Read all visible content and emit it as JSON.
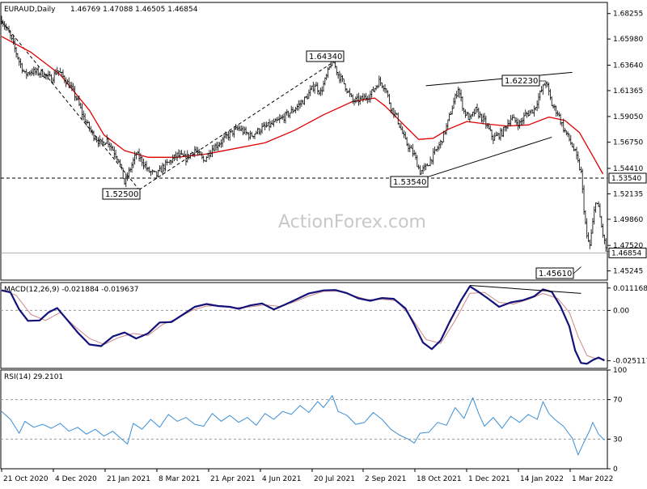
{
  "chart_data": [
    {
      "type": "candlestick",
      "title": "EURAUD,Daily",
      "ohlc": "1.46769 1.47088 1.46505 1.46854",
      "ylim": [
        1.4442,
        1.6925
      ],
      "y_ticks": [
        "1.68255",
        "1.65980",
        "1.63640",
        "1.61365",
        "1.59050",
        "1.56750",
        "1.54410",
        "1.52135",
        "1.49860",
        "1.47520",
        "1.45245"
      ],
      "x_ticks": [
        "21 Oct 2020",
        "4 Dec 2020",
        "21 Jan 2021",
        "8 Mar 2021",
        "21 Apr 2021",
        "4 Jun 2021",
        "20 Jul 2021",
        "2 Sep 2021",
        "18 Oct 2021",
        "1 Dec 2021",
        "14 Jan 2022",
        "1 Mar 2022"
      ],
      "price_tags": {
        "support": "1.53540",
        "current": "1.46854"
      },
      "annotations": [
        "1.52500",
        "1.64340",
        "1.53540",
        "1.62230",
        "1.45610"
      ],
      "close_path": [
        [
          0,
          1.677
        ],
        [
          6,
          1.662
        ],
        [
          12,
          1.64
        ],
        [
          16,
          1.628
        ],
        [
          20,
          1.631
        ],
        [
          28,
          1.629
        ],
        [
          34,
          1.624
        ],
        [
          38,
          1.632
        ],
        [
          42,
          1.626
        ],
        [
          48,
          1.615
        ],
        [
          52,
          1.604
        ],
        [
          56,
          1.59
        ],
        [
          62,
          1.575
        ],
        [
          68,
          1.566
        ],
        [
          72,
          1.57
        ],
        [
          80,
          1.552
        ],
        [
          84,
          1.531
        ],
        [
          88,
          1.544
        ],
        [
          92,
          1.557
        ],
        [
          96,
          1.551
        ],
        [
          100,
          1.542
        ],
        [
          106,
          1.538
        ],
        [
          110,
          1.545
        ],
        [
          114,
          1.549
        ],
        [
          120,
          1.556
        ],
        [
          126,
          1.553
        ],
        [
          132,
          1.561
        ],
        [
          138,
          1.551
        ],
        [
          144,
          1.562
        ],
        [
          150,
          1.568
        ],
        [
          156,
          1.575
        ],
        [
          162,
          1.58
        ],
        [
          170,
          1.573
        ],
        [
          178,
          1.58
        ],
        [
          186,
          1.584
        ],
        [
          194,
          1.591
        ],
        [
          200,
          1.597
        ],
        [
          208,
          1.607
        ],
        [
          214,
          1.619
        ],
        [
          218,
          1.612
        ],
        [
          222,
          1.626
        ],
        [
          226,
          1.642
        ],
        [
          230,
          1.628
        ],
        [
          234,
          1.62
        ],
        [
          240,
          1.604
        ],
        [
          246,
          1.606
        ],
        [
          252,
          1.61
        ],
        [
          258,
          1.622
        ],
        [
          262,
          1.617
        ],
        [
          266,
          1.599
        ],
        [
          270,
          1.59
        ],
        [
          276,
          1.568
        ],
        [
          282,
          1.556
        ],
        [
          286,
          1.541
        ],
        [
          290,
          1.545
        ],
        [
          296,
          1.558
        ],
        [
          300,
          1.567
        ],
        [
          304,
          1.581
        ],
        [
          308,
          1.599
        ],
        [
          312,
          1.616
        ],
        [
          316,
          1.595
        ],
        [
          320,
          1.588
        ],
        [
          324,
          1.596
        ],
        [
          330,
          1.586
        ],
        [
          336,
          1.571
        ],
        [
          342,
          1.576
        ],
        [
          348,
          1.589
        ],
        [
          354,
          1.584
        ],
        [
          358,
          1.592
        ],
        [
          364,
          1.597
        ],
        [
          368,
          1.611
        ],
        [
          372,
          1.622
        ],
        [
          376,
          1.601
        ],
        [
          380,
          1.594
        ],
        [
          384,
          1.58
        ],
        [
          388,
          1.57
        ],
        [
          392,
          1.558
        ],
        [
          396,
          1.54
        ],
        [
          398,
          1.508
        ],
        [
          400,
          1.482
        ],
        [
          402,
          1.475
        ],
        [
          404,
          1.495
        ],
        [
          406,
          1.516
        ],
        [
          408,
          1.508
        ],
        [
          410,
          1.492
        ],
        [
          412,
          1.478
        ],
        [
          414,
          1.469
        ]
      ],
      "ma_path": [
        [
          0,
          1.662
        ],
        [
          20,
          1.648
        ],
        [
          40,
          1.628
        ],
        [
          60,
          1.596
        ],
        [
          70,
          1.574
        ],
        [
          84,
          1.56
        ],
        [
          100,
          1.554
        ],
        [
          120,
          1.554
        ],
        [
          140,
          1.557
        ],
        [
          160,
          1.562
        ],
        [
          180,
          1.567
        ],
        [
          200,
          1.578
        ],
        [
          220,
          1.592
        ],
        [
          240,
          1.604
        ],
        [
          255,
          1.607
        ],
        [
          262,
          1.6
        ],
        [
          275,
          1.583
        ],
        [
          285,
          1.57
        ],
        [
          295,
          1.571
        ],
        [
          305,
          1.579
        ],
        [
          318,
          1.586
        ],
        [
          330,
          1.584
        ],
        [
          345,
          1.582
        ],
        [
          360,
          1.583
        ],
        [
          374,
          1.59
        ],
        [
          385,
          1.587
        ],
        [
          395,
          1.576
        ],
        [
          405,
          1.553
        ],
        [
          411,
          1.539
        ]
      ],
      "trendlines": [
        {
          "from": [
            0,
            1.676
          ],
          "to": [
            94,
            1.525
          ],
          "dash": true
        },
        {
          "from": [
            94,
            1.525
          ],
          "to": [
            230,
            1.642
          ],
          "dash": true
        },
        {
          "from": [
            290,
            1.618
          ],
          "to": [
            390,
            1.63
          ],
          "dash": false
        },
        {
          "from": [
            290,
            1.536
          ],
          "to": [
            376,
            1.572
          ],
          "dash": false
        }
      ]
    },
    {
      "type": "line",
      "title": "MACD(12,26,9) -0.021884 -0.019637",
      "ylim": [
        -0.0289,
        0.0139
      ],
      "y_ticks": [
        "0.011168",
        "0.00",
        "-0.025117"
      ],
      "macd_path": [
        [
          0,
          0.01
        ],
        [
          6,
          0.009
        ],
        [
          12,
          0.0005
        ],
        [
          18,
          -0.0052
        ],
        [
          26,
          -0.005
        ],
        [
          32,
          -0.001
        ],
        [
          38,
          0.0012
        ],
        [
          44,
          -0.004
        ],
        [
          52,
          -0.011
        ],
        [
          60,
          -0.017
        ],
        [
          68,
          -0.0178
        ],
        [
          76,
          -0.013
        ],
        [
          84,
          -0.011
        ],
        [
          92,
          -0.014
        ],
        [
          100,
          -0.0115
        ],
        [
          108,
          -0.006
        ],
        [
          116,
          -0.0058
        ],
        [
          124,
          -0.002
        ],
        [
          132,
          0.0018
        ],
        [
          140,
          0.0032
        ],
        [
          148,
          0.0022
        ],
        [
          156,
          0.0018
        ],
        [
          162,
          0.0008
        ],
        [
          170,
          0.0025
        ],
        [
          178,
          0.0035
        ],
        [
          186,
          0.0005
        ],
        [
          194,
          0.003
        ],
        [
          200,
          0.005
        ],
        [
          210,
          0.0085
        ],
        [
          220,
          0.01
        ],
        [
          228,
          0.0102
        ],
        [
          236,
          0.0086
        ],
        [
          244,
          0.006
        ],
        [
          252,
          0.0048
        ],
        [
          260,
          0.0062
        ],
        [
          268,
          0.0058
        ],
        [
          276,
          0.001
        ],
        [
          282,
          -0.007
        ],
        [
          288,
          -0.016
        ],
        [
          294,
          -0.0193
        ],
        [
          300,
          -0.015
        ],
        [
          306,
          -0.006
        ],
        [
          314,
          0.005
        ],
        [
          320,
          0.012
        ],
        [
          326,
          0.0092
        ],
        [
          332,
          0.0062
        ],
        [
          340,
          0.0018
        ],
        [
          348,
          0.004
        ],
        [
          356,
          0.005
        ],
        [
          364,
          0.007
        ],
        [
          370,
          0.0105
        ],
        [
          376,
          0.0092
        ],
        [
          382,
          0.002
        ],
        [
          388,
          -0.008
        ],
        [
          392,
          -0.02
        ],
        [
          396,
          -0.0262
        ],
        [
          400,
          -0.0266
        ],
        [
          404,
          -0.0248
        ],
        [
          408,
          -0.0235
        ],
        [
          412,
          -0.025
        ]
      ],
      "signal_path": [
        [
          0,
          0.0104
        ],
        [
          10,
          0.0075
        ],
        [
          20,
          -0.002
        ],
        [
          30,
          -0.005
        ],
        [
          40,
          -0.001
        ],
        [
          50,
          -0.008
        ],
        [
          60,
          -0.014
        ],
        [
          70,
          -0.017
        ],
        [
          80,
          -0.0135
        ],
        [
          90,
          -0.0115
        ],
        [
          100,
          -0.0125
        ],
        [
          110,
          -0.007
        ],
        [
          120,
          -0.004
        ],
        [
          130,
          0.0
        ],
        [
          140,
          0.0022
        ],
        [
          150,
          0.0024
        ],
        [
          160,
          0.0014
        ],
        [
          170,
          0.0018
        ],
        [
          180,
          0.0028
        ],
        [
          190,
          0.002
        ],
        [
          200,
          0.0042
        ],
        [
          210,
          0.0072
        ],
        [
          220,
          0.0095
        ],
        [
          230,
          0.0096
        ],
        [
          240,
          0.0075
        ],
        [
          250,
          0.0054
        ],
        [
          260,
          0.0056
        ],
        [
          270,
          0.0048
        ],
        [
          280,
          -0.0035
        ],
        [
          290,
          -0.0145
        ],
        [
          300,
          -0.0165
        ],
        [
          310,
          -0.005
        ],
        [
          320,
          0.0085
        ],
        [
          330,
          0.009
        ],
        [
          340,
          0.004
        ],
        [
          350,
          0.0032
        ],
        [
          360,
          0.0055
        ],
        [
          370,
          0.0085
        ],
        [
          380,
          0.006
        ],
        [
          388,
          -0.001
        ],
        [
          394,
          -0.013
        ],
        [
          400,
          -0.0225
        ],
        [
          406,
          -0.024
        ],
        [
          412,
          -0.0242
        ]
      ],
      "trendline": {
        "from": [
          320,
          0.0125
        ],
        "to": [
          396,
          0.0085
        ]
      }
    },
    {
      "type": "line",
      "title": "RSI(14) 29.2101",
      "ylim": [
        0,
        100
      ],
      "y_ticks": [
        "100",
        "70",
        "30",
        "0"
      ],
      "rsi_path": [
        [
          0,
          58
        ],
        [
          6,
          50
        ],
        [
          12,
          36
        ],
        [
          16,
          48
        ],
        [
          22,
          42
        ],
        [
          28,
          45
        ],
        [
          34,
          41
        ],
        [
          40,
          46
        ],
        [
          46,
          38
        ],
        [
          52,
          42
        ],
        [
          58,
          35
        ],
        [
          64,
          40
        ],
        [
          70,
          33
        ],
        [
          76,
          38
        ],
        [
          82,
          30
        ],
        [
          86,
          25
        ],
        [
          90,
          46
        ],
        [
          96,
          40
        ],
        [
          102,
          50
        ],
        [
          108,
          42
        ],
        [
          114,
          55
        ],
        [
          120,
          48
        ],
        [
          126,
          52
        ],
        [
          132,
          45
        ],
        [
          138,
          43
        ],
        [
          144,
          56
        ],
        [
          150,
          48
        ],
        [
          156,
          54
        ],
        [
          162,
          47
        ],
        [
          168,
          52
        ],
        [
          174,
          44
        ],
        [
          180,
          56
        ],
        [
          186,
          50
        ],
        [
          192,
          58
        ],
        [
          198,
          55
        ],
        [
          204,
          64
        ],
        [
          210,
          57
        ],
        [
          216,
          68
        ],
        [
          220,
          62
        ],
        [
          226,
          74
        ],
        [
          230,
          58
        ],
        [
          236,
          54
        ],
        [
          242,
          45
        ],
        [
          248,
          47
        ],
        [
          254,
          57
        ],
        [
          260,
          50
        ],
        [
          266,
          40
        ],
        [
          272,
          34
        ],
        [
          278,
          30
        ],
        [
          282,
          26
        ],
        [
          286,
          36
        ],
        [
          292,
          37
        ],
        [
          298,
          47
        ],
        [
          304,
          44
        ],
        [
          310,
          62
        ],
        [
          316,
          51
        ],
        [
          322,
          72
        ],
        [
          326,
          56
        ],
        [
          330,
          43
        ],
        [
          336,
          52
        ],
        [
          342,
          41
        ],
        [
          348,
          53
        ],
        [
          354,
          47
        ],
        [
          360,
          55
        ],
        [
          366,
          50
        ],
        [
          370,
          68
        ],
        [
          374,
          56
        ],
        [
          378,
          50
        ],
        [
          384,
          43
        ],
        [
          390,
          31
        ],
        [
          394,
          14
        ],
        [
          398,
          27
        ],
        [
          402,
          39
        ],
        [
          404,
          47
        ],
        [
          408,
          35
        ],
        [
          412,
          29
        ]
      ]
    }
  ],
  "watermark": "ActionForex.com"
}
